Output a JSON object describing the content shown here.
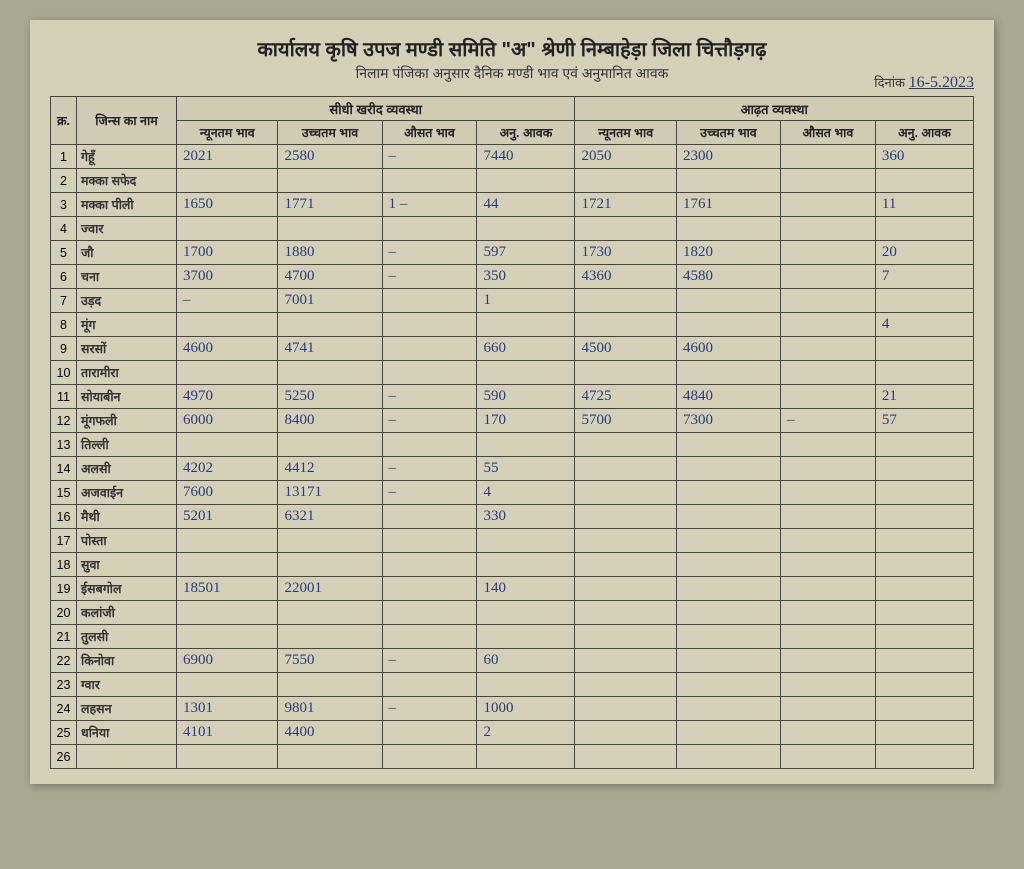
{
  "header": {
    "title": "कार्यालय कृषि उपज मण्डी समिति \"अ\" श्रेणी निम्बाहेड़ा जिला चित्तौड़गढ़",
    "subtitle": "निलाम पंजिका अनुसार दैनिक मण्डी भाव एवं अनुमानित आवक",
    "date_label": "दिनांक",
    "date_value": "16-5.2023"
  },
  "columns": {
    "sno": "क्र.",
    "name": "जिन्स का नाम",
    "group1": "सीधी खरीद व्यवस्था",
    "group2": "आढ़त व्यवस्था",
    "min": "न्यूनतम भाव",
    "max": "उच्चतम भाव",
    "avg": "औसत भाव",
    "anavak": "अनु. आवक"
  },
  "rows": [
    {
      "n": "1",
      "name": "गेहूँ",
      "a1": "2021",
      "a2": "2580",
      "a3": "–",
      "a4": "7440",
      "b1": "2050",
      "b2": "2300",
      "b3": "",
      "b4": "360"
    },
    {
      "n": "2",
      "name": "मक्का सफेद",
      "a1": "",
      "a2": "",
      "a3": "",
      "a4": "",
      "b1": "",
      "b2": "",
      "b3": "",
      "b4": ""
    },
    {
      "n": "3",
      "name": "मक्का पीली",
      "a1": "1650",
      "a2": "1771",
      "a3": "1 –",
      "a4": "44",
      "b1": "1721",
      "b2": "1761",
      "b3": "",
      "b4": "11"
    },
    {
      "n": "4",
      "name": "ज्वार",
      "a1": "",
      "a2": "",
      "a3": "",
      "a4": "",
      "b1": "",
      "b2": "",
      "b3": "",
      "b4": ""
    },
    {
      "n": "5",
      "name": "जौ",
      "a1": "1700",
      "a2": "1880",
      "a3": "–",
      "a4": "597",
      "b1": "1730",
      "b2": "1820",
      "b3": "",
      "b4": "20"
    },
    {
      "n": "6",
      "name": "चना",
      "a1": "3700",
      "a2": "4700",
      "a3": "–",
      "a4": "350",
      "b1": "4360",
      "b2": "4580",
      "b3": "",
      "b4": "7"
    },
    {
      "n": "7",
      "name": "उड़द",
      "a1": "–",
      "a2": "7001",
      "a3": "",
      "a4": "1",
      "b1": "",
      "b2": "",
      "b3": "",
      "b4": ""
    },
    {
      "n": "8",
      "name": "मूंग",
      "a1": "",
      "a2": "",
      "a3": "",
      "a4": "",
      "b1": "",
      "b2": "",
      "b3": "",
      "b4": "4"
    },
    {
      "n": "9",
      "name": "सरसों",
      "a1": "4600",
      "a2": "4741",
      "a3": "",
      "a4": "660",
      "b1": "4500",
      "b2": "4600",
      "b3": "",
      "b4": ""
    },
    {
      "n": "10",
      "name": "तारामीरा",
      "a1": "",
      "a2": "",
      "a3": "",
      "a4": "",
      "b1": "",
      "b2": "",
      "b3": "",
      "b4": ""
    },
    {
      "n": "11",
      "name": "सोयाबीन",
      "a1": "4970",
      "a2": "5250",
      "a3": "–",
      "a4": "590",
      "b1": "4725",
      "b2": "4840",
      "b3": "",
      "b4": "21"
    },
    {
      "n": "12",
      "name": "मूंगफली",
      "a1": "6000",
      "a2": "8400",
      "a3": "–",
      "a4": "170",
      "b1": "5700",
      "b2": "7300",
      "b3": "–",
      "b4": "57"
    },
    {
      "n": "13",
      "name": "तिल्ली",
      "a1": "",
      "a2": "",
      "a3": "",
      "a4": "",
      "b1": "",
      "b2": "",
      "b3": "",
      "b4": ""
    },
    {
      "n": "14",
      "name": "अलसी",
      "a1": "4202",
      "a2": "4412",
      "a3": "–",
      "a4": "55",
      "b1": "",
      "b2": "",
      "b3": "",
      "b4": ""
    },
    {
      "n": "15",
      "name": "अजवाईन",
      "a1": "7600",
      "a2": "13171",
      "a3": "–",
      "a4": "4",
      "b1": "",
      "b2": "",
      "b3": "",
      "b4": ""
    },
    {
      "n": "16",
      "name": "मैथी",
      "a1": "5201",
      "a2": "6321",
      "a3": "",
      "a4": "330",
      "b1": "",
      "b2": "",
      "b3": "",
      "b4": ""
    },
    {
      "n": "17",
      "name": "पोस्ता",
      "a1": "",
      "a2": "",
      "a3": "",
      "a4": "",
      "b1": "",
      "b2": "",
      "b3": "",
      "b4": ""
    },
    {
      "n": "18",
      "name": "सुवा",
      "a1": "",
      "a2": "",
      "a3": "",
      "a4": "",
      "b1": "",
      "b2": "",
      "b3": "",
      "b4": ""
    },
    {
      "n": "19",
      "name": "ईसबगोल",
      "a1": "18501",
      "a2": "22001",
      "a3": "",
      "a4": "140",
      "b1": "",
      "b2": "",
      "b3": "",
      "b4": ""
    },
    {
      "n": "20",
      "name": "कलांजी",
      "a1": "",
      "a2": "",
      "a3": "",
      "a4": "",
      "b1": "",
      "b2": "",
      "b3": "",
      "b4": ""
    },
    {
      "n": "21",
      "name": "तुलसी",
      "a1": "",
      "a2": "",
      "a3": "",
      "a4": "",
      "b1": "",
      "b2": "",
      "b3": "",
      "b4": ""
    },
    {
      "n": "22",
      "name": "किनोवा",
      "a1": "6900",
      "a2": "7550",
      "a3": "–",
      "a4": "60",
      "b1": "",
      "b2": "",
      "b3": "",
      "b4": ""
    },
    {
      "n": "23",
      "name": "ग्वार",
      "a1": "",
      "a2": "",
      "a3": "",
      "a4": "",
      "b1": "",
      "b2": "",
      "b3": "",
      "b4": ""
    },
    {
      "n": "24",
      "name": "लहसन",
      "a1": "1301",
      "a2": "9801",
      "a3": "–",
      "a4": "1000",
      "b1": "",
      "b2": "",
      "b3": "",
      "b4": ""
    },
    {
      "n": "25",
      "name": "धनिया",
      "a1": "4101",
      "a2": "4400",
      "a3": "",
      "a4": "2",
      "b1": "",
      "b2": "",
      "b3": "",
      "b4": ""
    },
    {
      "n": "26",
      "name": "",
      "a1": "",
      "a2": "",
      "a3": "",
      "a4": "",
      "b1": "",
      "b2": "",
      "b3": "",
      "b4": ""
    }
  ]
}
